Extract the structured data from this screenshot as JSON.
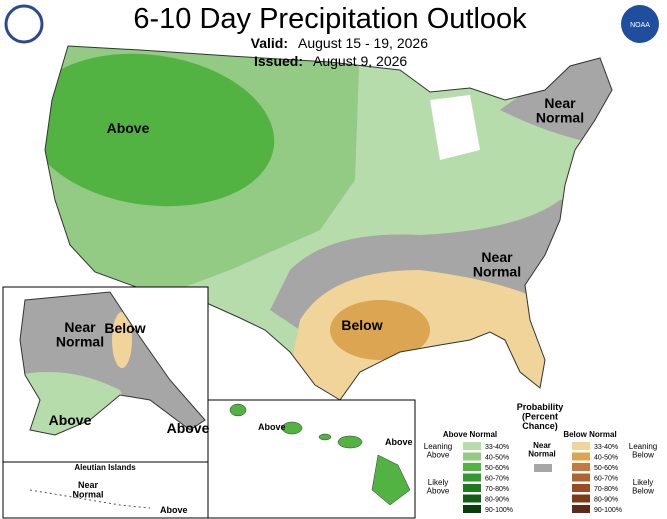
{
  "header": {
    "title": "6-10 Day Precipitation Outlook",
    "valid_label": "Valid:",
    "valid_dates": "August 15 - 19, 2026",
    "issued_label": "Issued:",
    "issued_date": "August 9, 2026",
    "logo": "NOAA"
  },
  "map_labels": {
    "conus_above": "Above",
    "northeast_near": "Near Normal",
    "southeast_near": "Near Normal",
    "south_below": "Below",
    "alaska_near": "Near Normal",
    "alaska_below": "Below",
    "alaska_above_sw": "Above",
    "alaska_above_se": "Above",
    "hawaii_above_w": "Above",
    "hawaii_above_e": "Above",
    "aleutian_title": "Aleutian Islands",
    "aleutian_near": "Near Normal",
    "aleutian_above": "Above"
  },
  "legend": {
    "title": "Probability (Percent Chance)",
    "above_header": "Above Normal",
    "below_header": "Below Normal",
    "near_label": "Near Normal",
    "near_color": "#a6a6a6",
    "leaning_above": "Leaning Above",
    "likely_above": "Likely Above",
    "leaning_below": "Leaning Below",
    "likely_below": "Likely Below",
    "above_bins": [
      {
        "label": "33-40%",
        "color": "#b5dcaa"
      },
      {
        "label": "40-50%",
        "color": "#94cb84"
      },
      {
        "label": "50-60%",
        "color": "#52b343"
      },
      {
        "label": "60-70%",
        "color": "#2f9a2f"
      },
      {
        "label": "70-80%",
        "color": "#1f7a1f"
      },
      {
        "label": "80-90%",
        "color": "#165c16"
      },
      {
        "label": "90-100%",
        "color": "#0b3d0b"
      }
    ],
    "below_bins": [
      {
        "label": "33-40%",
        "color": "#f0d49a"
      },
      {
        "label": "40-50%",
        "color": "#dba551"
      },
      {
        "label": "50-60%",
        "color": "#c47a3d"
      },
      {
        "label": "60-70%",
        "color": "#b0622f"
      },
      {
        "label": "70-80%",
        "color": "#9a4b23"
      },
      {
        "label": "80-90%",
        "color": "#7a3b1b"
      },
      {
        "label": "90-100%",
        "color": "#5c2b17"
      }
    ]
  }
}
